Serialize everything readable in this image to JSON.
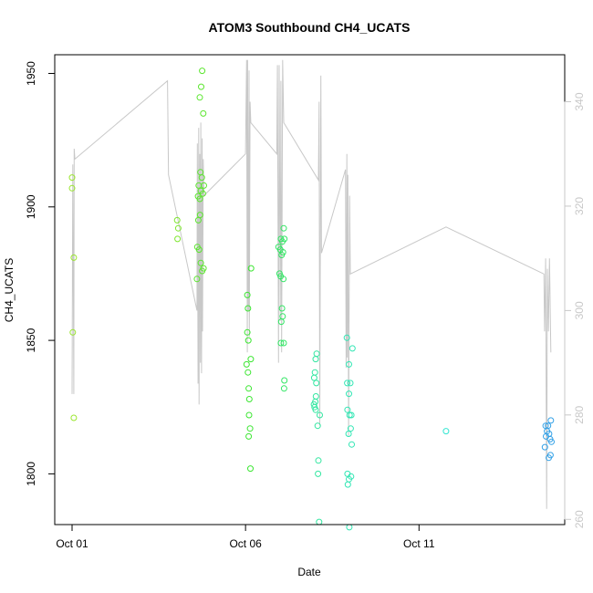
{
  "chart_data": {
    "type": "scatter",
    "title": "ATOM3 Southbound CH4_UCATS",
    "xlabel": "Date",
    "ylabel": "CH4_UCATS",
    "x_ticks": [
      {
        "label": "Oct 01",
        "day": 1
      },
      {
        "label": "Oct 06",
        "day": 6
      },
      {
        "label": "Oct 11",
        "day": 11
      }
    ],
    "y_ticks": [
      1800,
      1850,
      1900,
      1950
    ],
    "y_right_ticks": [
      260,
      280,
      300,
      320,
      340
    ],
    "xlim_days": [
      0.5,
      15.2
    ],
    "ylim": [
      1781,
      1957
    ],
    "y_right_lim": [
      259,
      349
    ],
    "colors": {
      "axis": "#000000",
      "secondary_line": "#c8c8c8",
      "right_axis": "#c8c8c8"
    },
    "points": [
      {
        "day": 1.0,
        "value": 1911,
        "color": "#9ae62e"
      },
      {
        "day": 1.0,
        "value": 1907,
        "color": "#9ae62e"
      },
      {
        "day": 1.05,
        "value": 1881,
        "color": "#9ae62e"
      },
      {
        "day": 1.02,
        "value": 1853,
        "color": "#9ae62e"
      },
      {
        "day": 1.05,
        "value": 1821,
        "color": "#9ae62e"
      },
      {
        "day": 4.03,
        "value": 1895,
        "color": "#7ee62e"
      },
      {
        "day": 4.06,
        "value": 1892,
        "color": "#7ee62e"
      },
      {
        "day": 4.04,
        "value": 1888,
        "color": "#7ee62e"
      },
      {
        "day": 4.75,
        "value": 1951,
        "color": "#5be62e"
      },
      {
        "day": 4.72,
        "value": 1945,
        "color": "#5be62e"
      },
      {
        "day": 4.68,
        "value": 1941,
        "color": "#5be62e"
      },
      {
        "day": 4.78,
        "value": 1935,
        "color": "#5be62e"
      },
      {
        "day": 4.7,
        "value": 1913,
        "color": "#5be62e"
      },
      {
        "day": 4.74,
        "value": 1911,
        "color": "#5be62e"
      },
      {
        "day": 4.65,
        "value": 1908,
        "color": "#5be62e"
      },
      {
        "day": 4.8,
        "value": 1908,
        "color": "#5be62e"
      },
      {
        "day": 4.71,
        "value": 1906,
        "color": "#5be62e"
      },
      {
        "day": 4.77,
        "value": 1905,
        "color": "#5be62e"
      },
      {
        "day": 4.63,
        "value": 1904,
        "color": "#5be62e"
      },
      {
        "day": 4.68,
        "value": 1903,
        "color": "#5be62e"
      },
      {
        "day": 4.69,
        "value": 1897,
        "color": "#5be62e"
      },
      {
        "day": 4.64,
        "value": 1895,
        "color": "#5be62e"
      },
      {
        "day": 4.61,
        "value": 1885,
        "color": "#5be62e"
      },
      {
        "day": 4.66,
        "value": 1884,
        "color": "#5be62e"
      },
      {
        "day": 4.71,
        "value": 1879,
        "color": "#5be62e"
      },
      {
        "day": 4.79,
        "value": 1877,
        "color": "#5be62e"
      },
      {
        "day": 4.75,
        "value": 1876,
        "color": "#5be62e"
      },
      {
        "day": 4.6,
        "value": 1873,
        "color": "#5be62e"
      },
      {
        "day": 6.16,
        "value": 1877,
        "color": "#3ce632"
      },
      {
        "day": 6.05,
        "value": 1867,
        "color": "#3ce632"
      },
      {
        "day": 6.07,
        "value": 1862,
        "color": "#3ce632"
      },
      {
        "day": 6.05,
        "value": 1853,
        "color": "#3ce632"
      },
      {
        "day": 6.08,
        "value": 1850,
        "color": "#3ce632"
      },
      {
        "day": 6.15,
        "value": 1843,
        "color": "#3ce632"
      },
      {
        "day": 6.03,
        "value": 1841,
        "color": "#3ce632"
      },
      {
        "day": 6.07,
        "value": 1838,
        "color": "#3ce632"
      },
      {
        "day": 6.09,
        "value": 1832,
        "color": "#3ce632"
      },
      {
        "day": 6.11,
        "value": 1828,
        "color": "#3ce632"
      },
      {
        "day": 6.1,
        "value": 1822,
        "color": "#3ce632"
      },
      {
        "day": 6.13,
        "value": 1817,
        "color": "#3ce632"
      },
      {
        "day": 6.09,
        "value": 1814,
        "color": "#3ce632"
      },
      {
        "day": 6.14,
        "value": 1802,
        "color": "#3ce632"
      },
      {
        "day": 7.1,
        "value": 1892,
        "color": "#32e664"
      },
      {
        "day": 7.12,
        "value": 1888,
        "color": "#32e664"
      },
      {
        "day": 7.02,
        "value": 1888,
        "color": "#32e664"
      },
      {
        "day": 7.06,
        "value": 1887,
        "color": "#32e664"
      },
      {
        "day": 6.95,
        "value": 1885,
        "color": "#32e664"
      },
      {
        "day": 7.0,
        "value": 1884,
        "color": "#32e664"
      },
      {
        "day": 7.08,
        "value": 1883,
        "color": "#32e664"
      },
      {
        "day": 7.04,
        "value": 1882,
        "color": "#32e664"
      },
      {
        "day": 6.98,
        "value": 1875,
        "color": "#32e664"
      },
      {
        "day": 7.01,
        "value": 1874,
        "color": "#32e664"
      },
      {
        "day": 7.09,
        "value": 1873,
        "color": "#32e664"
      },
      {
        "day": 7.05,
        "value": 1862,
        "color": "#32e664"
      },
      {
        "day": 7.07,
        "value": 1859,
        "color": "#32e664"
      },
      {
        "day": 7.03,
        "value": 1857,
        "color": "#32e664"
      },
      {
        "day": 7.02,
        "value": 1849,
        "color": "#32e664"
      },
      {
        "day": 7.1,
        "value": 1849,
        "color": "#32e664"
      },
      {
        "day": 7.12,
        "value": 1835,
        "color": "#32e664"
      },
      {
        "day": 7.11,
        "value": 1832,
        "color": "#32e664"
      },
      {
        "day": 8.05,
        "value": 1845,
        "color": "#32e6a0"
      },
      {
        "day": 8.02,
        "value": 1843,
        "color": "#32e6a0"
      },
      {
        "day": 8.0,
        "value": 1838,
        "color": "#32e6a0"
      },
      {
        "day": 7.98,
        "value": 1836,
        "color": "#32e6a0"
      },
      {
        "day": 8.04,
        "value": 1834,
        "color": "#32e6a0"
      },
      {
        "day": 8.03,
        "value": 1829,
        "color": "#32e6a0"
      },
      {
        "day": 8.01,
        "value": 1827,
        "color": "#32e6a0"
      },
      {
        "day": 7.97,
        "value": 1826,
        "color": "#32e6a0"
      },
      {
        "day": 7.99,
        "value": 1825,
        "color": "#32e6a0"
      },
      {
        "day": 8.02,
        "value": 1824,
        "color": "#32e6a0"
      },
      {
        "day": 8.14,
        "value": 1822,
        "color": "#32e6a0"
      },
      {
        "day": 8.08,
        "value": 1818,
        "color": "#32e6a0"
      },
      {
        "day": 8.1,
        "value": 1805,
        "color": "#32e6a0"
      },
      {
        "day": 8.09,
        "value": 1800,
        "color": "#32e6a0"
      },
      {
        "day": 8.12,
        "value": 1782,
        "color": "#32e6a0"
      },
      {
        "day": 8.92,
        "value": 1851,
        "color": "#32e6b4"
      },
      {
        "day": 9.08,
        "value": 1847,
        "color": "#32e6b4"
      },
      {
        "day": 8.98,
        "value": 1841,
        "color": "#32e6b4"
      },
      {
        "day": 8.93,
        "value": 1834,
        "color": "#32e6b4"
      },
      {
        "day": 9.02,
        "value": 1834,
        "color": "#32e6b4"
      },
      {
        "day": 8.98,
        "value": 1830,
        "color": "#32e6b4"
      },
      {
        "day": 8.94,
        "value": 1824,
        "color": "#32e6b4"
      },
      {
        "day": 9.0,
        "value": 1822,
        "color": "#32e6b4"
      },
      {
        "day": 9.05,
        "value": 1822,
        "color": "#32e6b4"
      },
      {
        "day": 9.03,
        "value": 1817,
        "color": "#32e6b4"
      },
      {
        "day": 8.97,
        "value": 1815,
        "color": "#32e6b4"
      },
      {
        "day": 9.06,
        "value": 1811,
        "color": "#32e6b4"
      },
      {
        "day": 8.94,
        "value": 1800,
        "color": "#32e6b4"
      },
      {
        "day": 9.04,
        "value": 1799,
        "color": "#32e6b4"
      },
      {
        "day": 8.98,
        "value": 1798,
        "color": "#32e6b4"
      },
      {
        "day": 8.95,
        "value": 1796,
        "color": "#32e6b4"
      },
      {
        "day": 8.99,
        "value": 1780,
        "color": "#32e6b4"
      },
      {
        "day": 11.78,
        "value": 1816,
        "color": "#32e6d2"
      },
      {
        "day": 14.8,
        "value": 1820,
        "color": "#32a0e6"
      },
      {
        "day": 14.65,
        "value": 1818,
        "color": "#32a0e6"
      },
      {
        "day": 14.72,
        "value": 1818,
        "color": "#32a0e6"
      },
      {
        "day": 14.69,
        "value": 1816,
        "color": "#32a0e6"
      },
      {
        "day": 14.75,
        "value": 1815,
        "color": "#32a0e6"
      },
      {
        "day": 14.66,
        "value": 1814,
        "color": "#32a0e6"
      },
      {
        "day": 14.78,
        "value": 1813,
        "color": "#32a0e6"
      },
      {
        "day": 14.82,
        "value": 1812,
        "color": "#32a0e6"
      },
      {
        "day": 14.63,
        "value": 1810,
        "color": "#32a0e6"
      },
      {
        "day": 14.79,
        "value": 1807,
        "color": "#32a0e6"
      },
      {
        "day": 14.74,
        "value": 1806,
        "color": "#32a0e6"
      }
    ],
    "secondary_line": [
      [
        1.0,
        284
      ],
      [
        1.02,
        328
      ],
      [
        1.05,
        284
      ],
      [
        1.06,
        331
      ],
      [
        1.08,
        329
      ],
      [
        3.75,
        344
      ],
      [
        3.78,
        326
      ],
      [
        4.6,
        300
      ],
      [
        4.61,
        332
      ],
      [
        4.63,
        286
      ],
      [
        4.65,
        335
      ],
      [
        4.66,
        282
      ],
      [
        4.68,
        330
      ],
      [
        4.7,
        290
      ],
      [
        4.71,
        336
      ],
      [
        4.73,
        288
      ],
      [
        4.75,
        333
      ],
      [
        4.76,
        296
      ],
      [
        4.78,
        329
      ],
      [
        4.8,
        322
      ],
      [
        6.0,
        330
      ],
      [
        6.03,
        348
      ],
      [
        6.05,
        292
      ],
      [
        6.06,
        348
      ],
      [
        6.08,
        300
      ],
      [
        6.1,
        346
      ],
      [
        6.11,
        295
      ],
      [
        6.13,
        340
      ],
      [
        6.15,
        336
      ],
      [
        6.9,
        330
      ],
      [
        6.92,
        347
      ],
      [
        6.95,
        290
      ],
      [
        6.97,
        347
      ],
      [
        7.0,
        298
      ],
      [
        7.02,
        344
      ],
      [
        7.04,
        292
      ],
      [
        7.07,
        348
      ],
      [
        7.1,
        336
      ],
      [
        8.1,
        325
      ],
      [
        8.12,
        340
      ],
      [
        8.14,
        278
      ],
      [
        8.17,
        345
      ],
      [
        8.19,
        311
      ],
      [
        8.88,
        327
      ],
      [
        8.9,
        289
      ],
      [
        8.92,
        330
      ],
      [
        8.93,
        291
      ],
      [
        8.95,
        326
      ],
      [
        8.97,
        276
      ],
      [
        9.0,
        322
      ],
      [
        9.02,
        307
      ],
      [
        11.78,
        316
      ],
      [
        14.6,
        307
      ],
      [
        14.62,
        296
      ],
      [
        14.65,
        310
      ],
      [
        14.68,
        262
      ],
      [
        14.7,
        308
      ],
      [
        14.73,
        296
      ],
      [
        14.76,
        310
      ],
      [
        14.8,
        292
      ]
    ]
  }
}
